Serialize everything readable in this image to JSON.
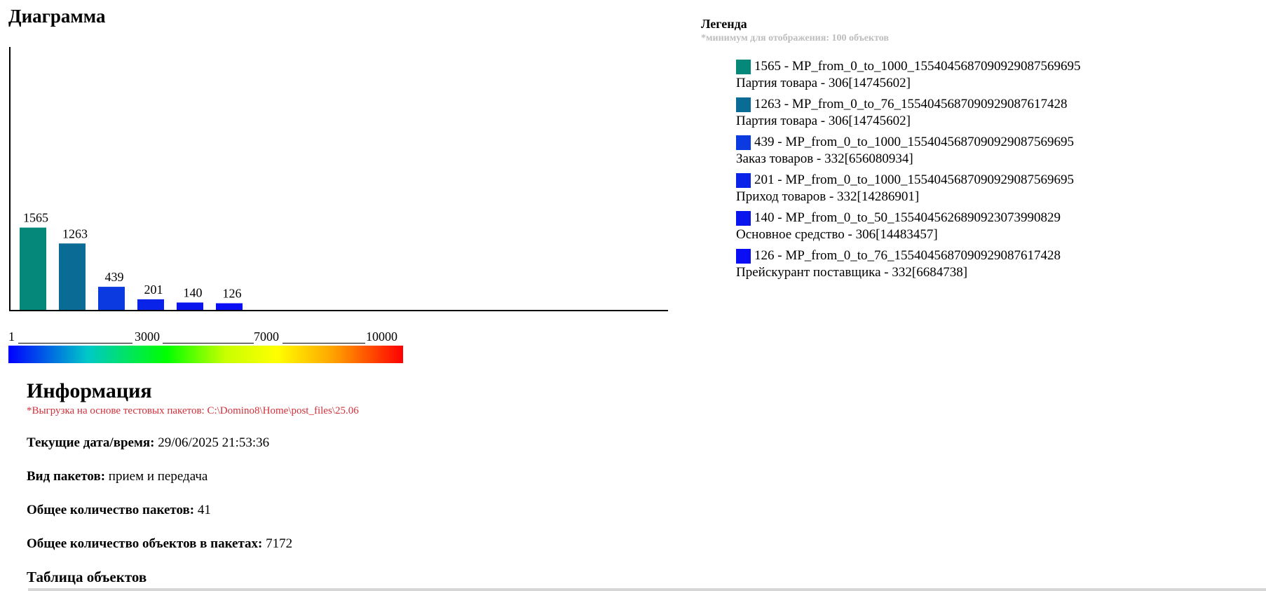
{
  "chart_title": "Диаграмма",
  "chart_data": {
    "type": "bar",
    "values": [
      1565,
      1263,
      439,
      201,
      140,
      126
    ],
    "colors": [
      "#05877a",
      "#0a6b94",
      "#0b3be0",
      "#0a23e8",
      "#0a15ee",
      "#0a0ef4"
    ],
    "scale_labels": [
      "1",
      "3000",
      "7000",
      "10000"
    ],
    "ylim": [
      0,
      5000
    ]
  },
  "legend": {
    "title": "Легенда",
    "note": "*минимум для отображения: 100 объектов",
    "items": [
      {
        "line1": "1565 - MP_from_0_to_1000_15540456870909290875696​95",
        "line2": "Партия товара - 306[14745602]",
        "color": "#05877a"
      },
      {
        "line1": "1263 - MP_from_0_to_76_155404568709092908761742​8",
        "line2": "Партия товара - 306[14745602]",
        "color": "#0a6b94"
      },
      {
        "line1": "439 - MP_from_0_to_1000_15540456870909290875696​95",
        "line2": "Заказ товаров - 332[656080934]",
        "color": "#0b3be0"
      },
      {
        "line1": "201 - MP_from_0_to_1000_15540456870909290875696​95",
        "line2": "Приход товаров - 332[14286901]",
        "color": "#0a23e8"
      },
      {
        "line1": "140 - MP_from_0_to_50_155404562689092307399082​9",
        "line2": "Основное средство - 306[14483457]",
        "color": "#0a15ee"
      },
      {
        "line1": "126 - MP_from_0_to_76_155404568709092908761742​8",
        "line2": "Прейскурант поставщика - 332[6684738]",
        "color": "#0a0ef4"
      }
    ]
  },
  "info": {
    "title": "Информация",
    "note": "*Выгрузка на основе тестовых пакетов: C:\\Domino8\\Home\\post_files\\25.06",
    "datetime_label": "Текущие дата/время:",
    "datetime_value": " 29/06/2025 21:53:36",
    "packet_type_label": "Вид пакетов:",
    "packet_type_value": " прием и передача",
    "packet_count_label": "Общее количество пакетов:",
    "packet_count_value": " 41",
    "object_count_label": "Общее количество объектов в пакетах:",
    "object_count_value": " 7172",
    "table_title": "Таблица объектов"
  }
}
